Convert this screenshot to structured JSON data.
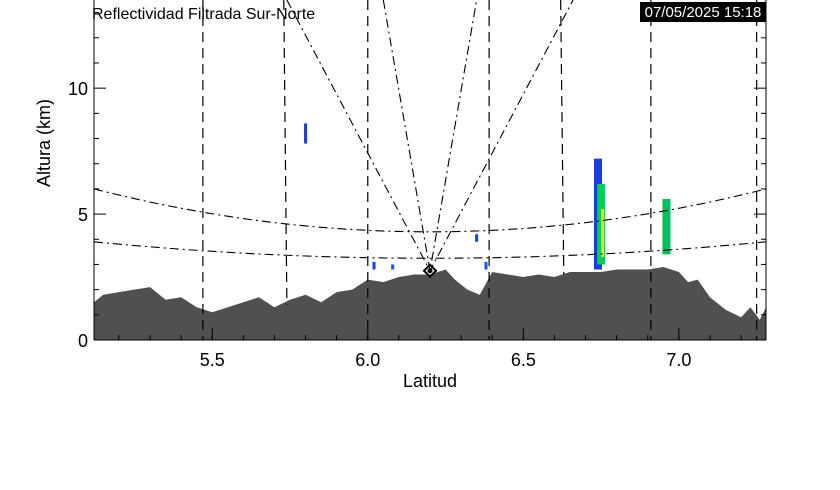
{
  "chart_data": {
    "type": "heatmap",
    "title": "Reflectividad Filtrada Sur-Norte",
    "timestamp": "07/05/2025 15:18",
    "xlabel": "Latitud",
    "ylabel": "Altura (km)",
    "xlim": [
      5.12,
      7.28
    ],
    "ylim": [
      0,
      13.5
    ],
    "x_ticks": [
      5.5,
      6.0,
      6.5,
      7.0
    ],
    "x_tick_labels": [
      "5.5",
      "6.0",
      "6.5",
      "7.0"
    ],
    "y_ticks": [
      0,
      5,
      10
    ],
    "y_tick_labels": [
      "0",
      "5",
      "10"
    ],
    "radar_location": {
      "lat": 6.2,
      "alt": 2.75
    },
    "terrain_color": "#505050",
    "terrain_profile": {
      "lat": [
        5.12,
        5.15,
        5.2,
        5.25,
        5.3,
        5.35,
        5.4,
        5.45,
        5.5,
        5.55,
        5.6,
        5.65,
        5.7,
        5.75,
        5.8,
        5.85,
        5.9,
        5.95,
        6.0,
        6.05,
        6.1,
        6.15,
        6.2,
        6.25,
        6.28,
        6.32,
        6.36,
        6.4,
        6.45,
        6.5,
        6.55,
        6.6,
        6.65,
        6.7,
        6.75,
        6.8,
        6.85,
        6.9,
        6.95,
        7.0,
        7.03,
        7.06,
        7.1,
        7.15,
        7.2,
        7.23,
        7.26,
        7.28
      ],
      "alt": [
        1.5,
        1.8,
        1.9,
        2.0,
        2.1,
        1.6,
        1.7,
        1.3,
        1.1,
        1.3,
        1.5,
        1.7,
        1.3,
        1.6,
        1.8,
        1.5,
        1.9,
        2.0,
        2.4,
        2.3,
        2.5,
        2.6,
        2.6,
        2.8,
        2.4,
        2.0,
        1.8,
        2.7,
        2.6,
        2.5,
        2.6,
        2.5,
        2.7,
        2.7,
        2.7,
        2.8,
        2.8,
        2.8,
        2.9,
        2.7,
        2.3,
        2.4,
        1.7,
        1.2,
        0.9,
        1.3,
        0.8,
        1.3
      ]
    },
    "beam_lines": {
      "vertical_dashed": [
        5.47,
        6.0,
        6.39,
        6.91,
        7.25
      ],
      "elevation_lines": [
        {
          "left": [
            5.12,
            6.0
          ],
          "right": [
            7.28,
            6.0
          ]
        },
        {
          "left": [
            5.12,
            3.9
          ],
          "right": [
            7.28,
            3.9
          ]
        },
        {
          "left": [
            5.74,
            13.5
          ],
          "right": [
            6.66,
            13.5
          ]
        },
        {
          "left": [
            6.05,
            13.5
          ],
          "right": [
            6.35,
            13.5
          ]
        }
      ],
      "tilted_dashed": [
        {
          "top": [
            5.73,
            13.5
          ],
          "bottom": [
            5.74,
            1.4
          ]
        },
        {
          "top": [
            6.62,
            13.5
          ],
          "bottom": [
            6.63,
            2.6
          ]
        }
      ]
    },
    "echoes": [
      {
        "lat": 5.8,
        "alt_min": 7.8,
        "alt_max": 8.6,
        "color": "#1a3cd8"
      },
      {
        "lat": 6.02,
        "alt_min": 2.8,
        "alt_max": 3.1,
        "color": "#1a3cd8"
      },
      {
        "lat": 6.08,
        "alt_min": 2.8,
        "alt_max": 3.0,
        "color": "#2050e8"
      },
      {
        "lat": 6.35,
        "alt_min": 3.9,
        "alt_max": 4.2,
        "color": "#1a3cd8"
      },
      {
        "lat": 6.38,
        "alt_min": 2.8,
        "alt_max": 3.1,
        "color": "#2050e8"
      },
      {
        "lat": 6.74,
        "alt_min": 2.8,
        "alt_max": 7.2,
        "color": "#1a3cd8"
      },
      {
        "lat": 6.75,
        "alt_min": 3.0,
        "alt_max": 6.2,
        "color": "#00d050"
      },
      {
        "lat": 6.755,
        "alt_min": 3.3,
        "alt_max": 5.2,
        "color": "#e8e020"
      },
      {
        "lat": 6.96,
        "alt_min": 3.4,
        "alt_max": 5.6,
        "color": "#00c060"
      }
    ]
  }
}
